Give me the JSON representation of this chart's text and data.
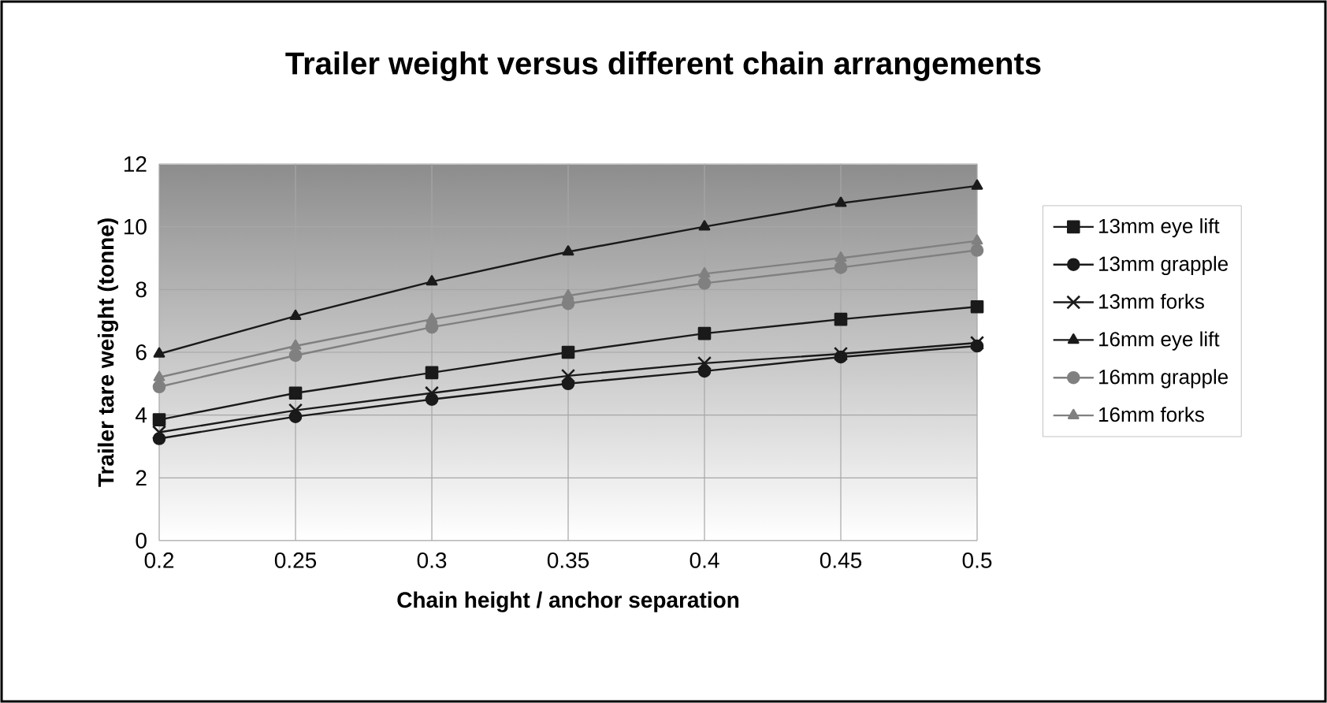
{
  "chart_data": {
    "type": "line",
    "title": "Trailer weight versus different chain arrangements",
    "xlabel": "Chain height / anchor separation",
    "ylabel": "Trailer tare weight (tonne)",
    "x": [
      0.2,
      0.25,
      0.3,
      0.35,
      0.4,
      0.45,
      0.5
    ],
    "series": [
      {
        "name": "13mm eye lift",
        "color": "#1a1a1a",
        "marker": "square",
        "values": [
          3.85,
          4.7,
          5.35,
          6.0,
          6.6,
          7.05,
          7.45
        ]
      },
      {
        "name": "13mm grapple",
        "color": "#1a1a1a",
        "marker": "circle",
        "values": [
          3.25,
          3.95,
          4.5,
          5.0,
          5.4,
          5.85,
          6.2
        ]
      },
      {
        "name": "13mm forks",
        "color": "#1a1a1a",
        "marker": "cross",
        "values": [
          3.45,
          4.15,
          4.7,
          5.25,
          5.65,
          5.95,
          6.3
        ]
      },
      {
        "name": "16mm eye lift",
        "color": "#1a1a1a",
        "marker": "triangle",
        "values": [
          5.95,
          7.15,
          8.25,
          9.2,
          10.0,
          10.75,
          11.3
        ]
      },
      {
        "name": "16mm grapple",
        "color": "#808080",
        "marker": "circle",
        "values": [
          4.9,
          5.9,
          6.8,
          7.55,
          8.2,
          8.7,
          9.25
        ]
      },
      {
        "name": "16mm forks",
        "color": "#808080",
        "marker": "triangle",
        "values": [
          5.2,
          6.2,
          7.05,
          7.8,
          8.5,
          9.0,
          9.55
        ]
      }
    ],
    "xlim": [
      0.2,
      0.5
    ],
    "xticks": [
      0.2,
      0.25,
      0.3,
      0.35,
      0.4,
      0.45,
      0.5
    ],
    "ylim": [
      0,
      12
    ],
    "yticks": [
      0,
      2,
      4,
      6,
      8,
      10,
      12
    ],
    "grid": true,
    "legend": "right",
    "line_style": "solid"
  }
}
